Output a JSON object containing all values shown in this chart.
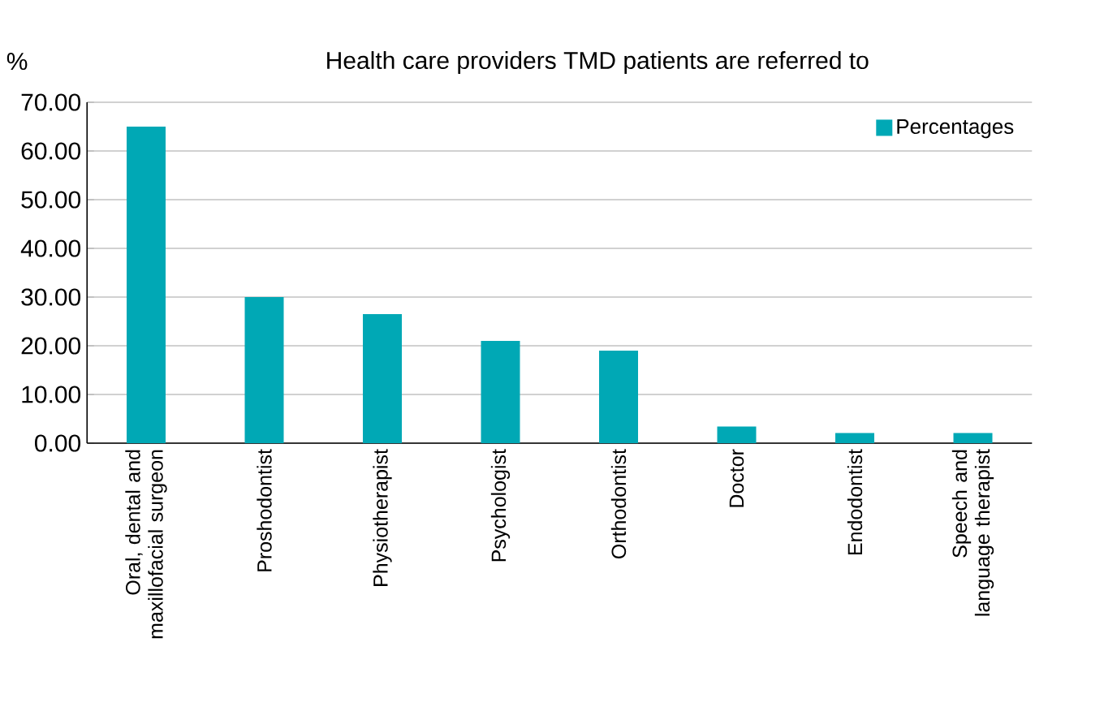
{
  "chart_data": {
    "type": "bar",
    "title": "Health care providers TMD patients are referred to",
    "ylabel": "%",
    "categories": [
      "Oral, dental and maxillofacial surgeon",
      "Proshodontist",
      "Physiotherapist",
      "Psychologist",
      "Orthodontist",
      "Doctor",
      "Endodontist",
      "Speech and language therapist"
    ],
    "series": [
      {
        "name": "Percentages",
        "color": "#00a8b5",
        "values": [
          65,
          30,
          26.5,
          21,
          19,
          3.4,
          2.1,
          2.1
        ]
      }
    ],
    "ylim": [
      0,
      70
    ],
    "yticks": [
      {
        "value": 0,
        "label": "0.00"
      },
      {
        "value": 10,
        "label": "10.00"
      },
      {
        "value": 20,
        "label": "20.00"
      },
      {
        "value": 30,
        "label": "30.00"
      },
      {
        "value": 40,
        "label": "40.00"
      },
      {
        "value": 50,
        "label": "50.00"
      },
      {
        "value": 60,
        "label": "60.00"
      },
      {
        "value": 70,
        "label": "70.00"
      }
    ],
    "grid": "y",
    "legend": "top right"
  }
}
